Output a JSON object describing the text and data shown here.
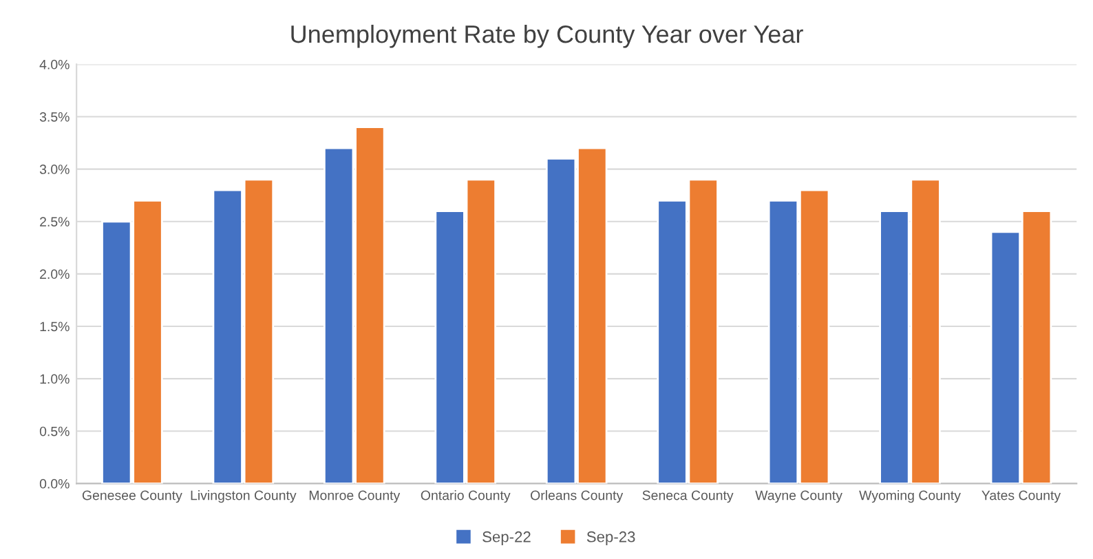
{
  "chart_data": {
    "type": "bar",
    "title": "Unemployment Rate by County Year over Year",
    "categories": [
      "Genesee County",
      "Livingston County",
      "Monroe County",
      "Ontario County",
      "Orleans County",
      "Seneca County",
      "Wayne County",
      "Wyoming County",
      "Yates County"
    ],
    "series": [
      {
        "name": "Sep-22",
        "color": "#4472c4",
        "values": [
          2.5,
          2.8,
          3.2,
          2.6,
          3.1,
          2.7,
          2.7,
          2.6,
          2.4
        ]
      },
      {
        "name": "Sep-23",
        "color": "#ed7d31",
        "values": [
          2.7,
          2.9,
          3.4,
          2.9,
          3.2,
          2.9,
          2.8,
          2.9,
          2.6
        ]
      }
    ],
    "ylim": [
      0,
      4.0
    ],
    "yticks": [
      {
        "value": 0,
        "label": "0.0%"
      },
      {
        "value": 0.5,
        "label": "0.5%"
      },
      {
        "value": 1.0,
        "label": "1.0%"
      },
      {
        "value": 1.5,
        "label": "1.5%"
      },
      {
        "value": 2.0,
        "label": "2.0%"
      },
      {
        "value": 2.5,
        "label": "2.5%"
      },
      {
        "value": 3.0,
        "label": "3.0%"
      },
      {
        "value": 3.5,
        "label": "3.5%"
      },
      {
        "value": 4.0,
        "label": "4.0%"
      }
    ],
    "grid": "y",
    "legend": "bottom"
  }
}
